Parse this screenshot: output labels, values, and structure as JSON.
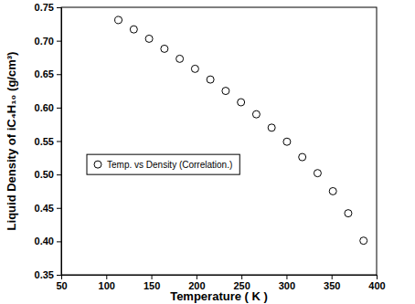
{
  "chart_data": {
    "type": "scatter",
    "x_label": "Temperature ( K )",
    "y_label": "Liquid Density of iC₄H₁₀ (g/cm³)",
    "x": [
      113.5,
      130.5,
      147.5,
      164.5,
      181.5,
      198.5,
      215.5,
      232.5,
      249.5,
      266.5,
      283.5,
      300.5,
      317.5,
      334.5,
      351.5,
      368.5,
      385.5
    ],
    "series": [
      {
        "name": "Temp. vs Density (Correlation.)",
        "color": "#000000",
        "marker": "open-circle",
        "values": [
          0.731,
          0.717,
          0.703,
          0.688,
          0.673,
          0.658,
          0.642,
          0.625,
          0.608,
          0.59,
          0.57,
          0.549,
          0.526,
          0.502,
          0.475,
          0.442,
          0.401
        ]
      }
    ],
    "xlim": [
      50,
      400
    ],
    "xticks": [
      50,
      100,
      150,
      200,
      250,
      300,
      350,
      400
    ],
    "ylim": [
      0.35,
      0.75
    ],
    "yticks": [
      0.35,
      {
        "value": 0.4,
        "label": "0.40"
      },
      0.45,
      {
        "value": 0.5,
        "label": "0.50"
      },
      0.55,
      {
        "value": 0.6,
        "label": "0.60"
      },
      0.65,
      {
        "value": 0.7,
        "label": "0.70"
      },
      0.75
    ],
    "legend": "center left",
    "grid": false
  }
}
